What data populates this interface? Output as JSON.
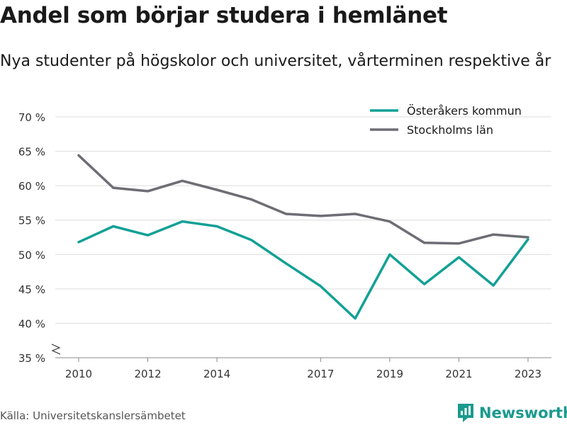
{
  "title": "Andel som börjar studera i hemlänet",
  "subtitle": "Nya studenter på högskolor och universitet, vårterminen respektive år",
  "source": "Källa: Universitetskanslersämbetet",
  "brand": {
    "name": "Newsworthy",
    "icon": "newsworthy-logo-icon",
    "color": "#1a9a8e"
  },
  "chart_data": {
    "type": "line",
    "title": "Andel som börjar studera i hemlänet",
    "xlabel": "",
    "ylabel": "",
    "x": [
      2010,
      2011,
      2012,
      2013,
      2014,
      2015,
      2016,
      2017,
      2018,
      2019,
      2020,
      2021,
      2022,
      2023
    ],
    "x_ticks": [
      "2010",
      "2012",
      "2014",
      "2017",
      "2019",
      "2021",
      "2023"
    ],
    "y_ticks": [
      "35 %",
      "40 %",
      "45 %",
      "50 %",
      "55 %",
      "60 %",
      "65 %",
      "70 %"
    ],
    "y_tick_values": [
      35,
      40,
      45,
      50,
      55,
      60,
      65,
      70
    ],
    "ylim": [
      35,
      70
    ],
    "axis_break": true,
    "grid": true,
    "legend_position": "top-right",
    "series": [
      {
        "name": "Österåkers kommun",
        "color": "#12a096",
        "values": [
          51.8,
          54.1,
          52.8,
          54.8,
          54.1,
          52.1,
          48.7,
          45.4,
          40.7,
          50.0,
          45.7,
          49.6,
          45.5,
          52.2
        ]
      },
      {
        "name": "Stockholms län",
        "color": "#6d6d75",
        "values": [
          64.4,
          59.7,
          59.2,
          60.7,
          59.4,
          58.0,
          55.9,
          55.6,
          55.9,
          54.8,
          51.7,
          51.6,
          52.9,
          52.5
        ]
      }
    ]
  }
}
